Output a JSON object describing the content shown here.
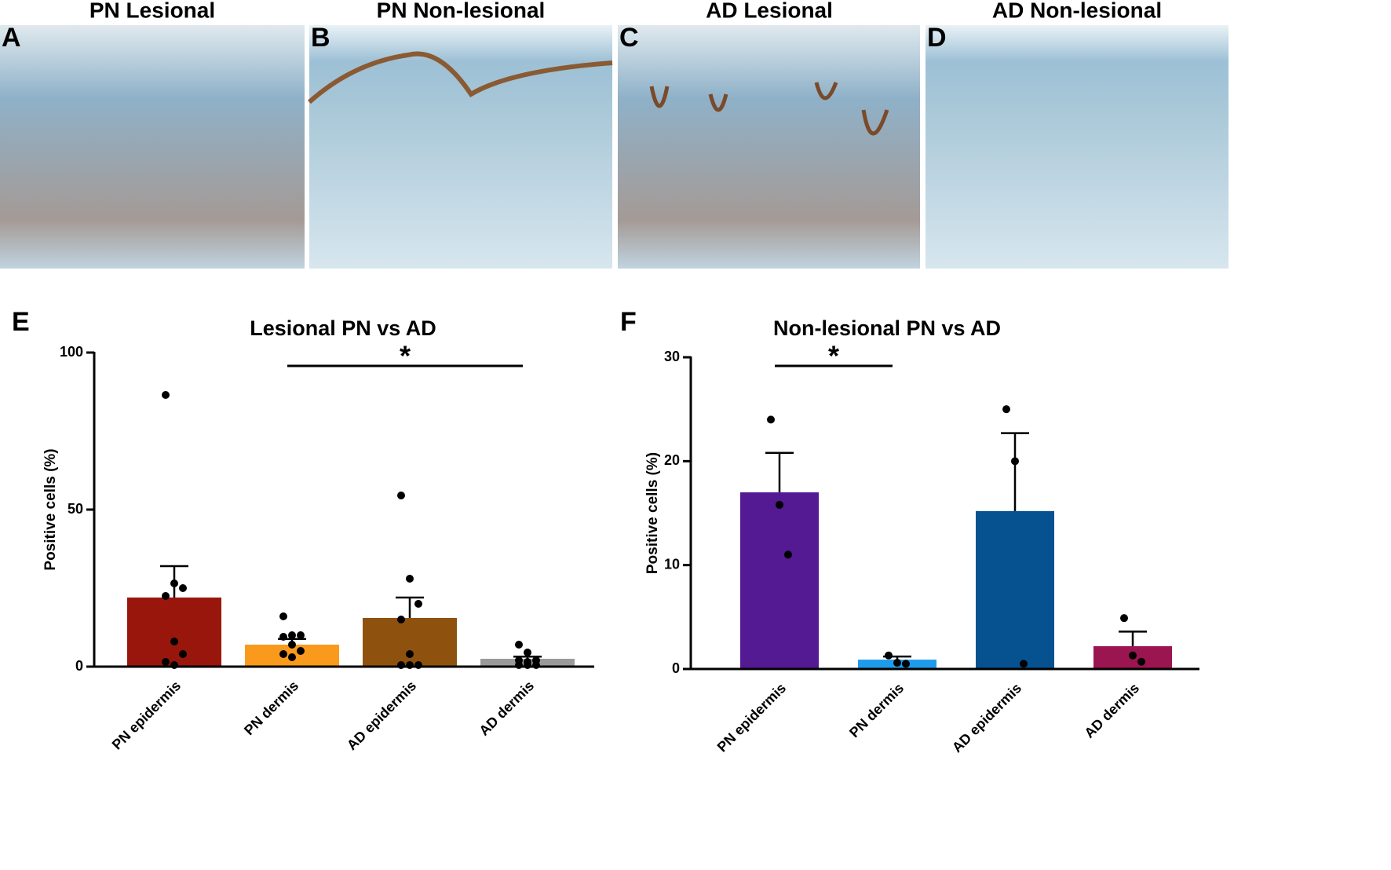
{
  "panels": [
    {
      "letter": "A",
      "title": "PN Lesional"
    },
    {
      "letter": "B",
      "title": "PN Non-lesional"
    },
    {
      "letter": "C",
      "title": "AD Lesional"
    },
    {
      "letter": "D",
      "title": "AD Non-lesional"
    }
  ],
  "chart_data": [
    {
      "type": "bar",
      "letter": "E",
      "title": "Lesional PN vs AD",
      "ylabel": "Positive cells (%)",
      "categories": [
        "PN epidermis",
        "PN dermis",
        "AD epidermis",
        "AD dermis"
      ],
      "values": [
        22,
        7,
        15.5,
        2.5
      ],
      "errors": [
        10,
        1.8,
        6.5,
        0.7
      ],
      "colors": [
        "#99160d",
        "#fa9a1c",
        "#8f520e",
        "#9a9a9a"
      ],
      "points": [
        [
          86.5,
          26.5,
          25,
          22.5,
          8,
          4,
          1.5,
          0.5
        ],
        [
          16,
          10,
          10,
          9.5,
          7,
          5,
          4,
          3
        ],
        [
          54.5,
          28,
          20,
          15,
          4,
          0.5,
          0.5,
          0.5
        ],
        [
          7,
          4.5,
          2,
          2,
          1.5,
          0.5,
          0.5,
          0.5
        ]
      ],
      "ylim": [
        0,
        100
      ],
      "yticks": [
        0,
        50,
        100
      ],
      "annotations": [
        {
          "text": "*",
          "between": [
            "PN dermis",
            "AD dermis"
          ]
        }
      ]
    },
    {
      "type": "bar",
      "letter": "F",
      "title": "Non-lesional PN vs AD",
      "ylabel": "Positive cells (%)",
      "categories": [
        "PN epidermis",
        "PN dermis",
        "AD epidermis",
        "AD dermis"
      ],
      "values": [
        17,
        0.9,
        15.2,
        2.2
      ],
      "errors": [
        3.8,
        0.3,
        7.5,
        1.4
      ],
      "colors": [
        "#531a93",
        "#1e9bea",
        "#065291",
        "#9b1550"
      ],
      "points": [
        [
          24,
          15.8,
          11
        ],
        [
          1.3,
          0.6,
          0.5
        ],
        [
          25,
          20,
          0.5
        ],
        [
          4.9,
          1.3,
          0.7
        ]
      ],
      "ylim": [
        0,
        30
      ],
      "yticks": [
        0,
        10,
        20,
        30
      ],
      "annotations": [
        {
          "text": "*",
          "between": [
            "PN epidermis",
            "PN dermis"
          ]
        }
      ]
    }
  ]
}
